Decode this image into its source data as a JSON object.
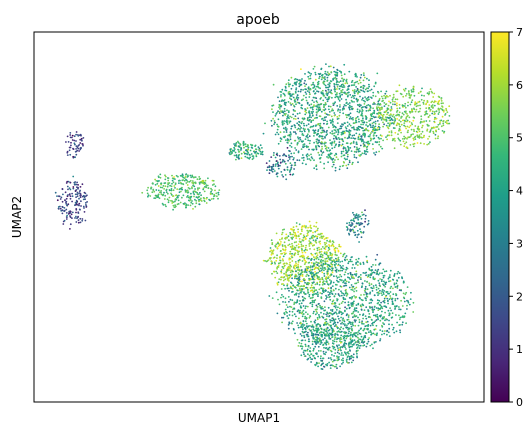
{
  "chart_data": {
    "type": "scatter",
    "title": "apoeb",
    "xlabel": "UMAP1",
    "ylabel": "UMAP2",
    "colorbar": {
      "min": 0,
      "max": 7,
      "ticks": [
        "0",
        "1",
        "2",
        "3",
        "4",
        "5",
        "6",
        "7"
      ],
      "colormap": "viridis",
      "stops": [
        "#440154",
        "#482878",
        "#3e4989",
        "#31688e",
        "#26828e",
        "#1f9e89",
        "#35b779",
        "#6ece58",
        "#b5de2b",
        "#fde725"
      ]
    },
    "xlim": [
      0,
      100
    ],
    "ylim": [
      0,
      100
    ],
    "x_ticks_shown": false,
    "y_ticks_shown": false,
    "grid": false,
    "clusters": [
      {
        "name": "upper-right",
        "cx": 66.0,
        "cy": 77.0,
        "rx": 13.0,
        "ry": 13.0,
        "value_mean": 4.2,
        "value_sd": 0.9,
        "n": 1400
      },
      {
        "name": "upper-right-lobe",
        "cx": 84.0,
        "cy": 77.0,
        "rx": 8.5,
        "ry": 8.0,
        "value_mean": 5.6,
        "value_sd": 0.6,
        "n": 450
      },
      {
        "name": "upper-left-patch",
        "cx": 55.0,
        "cy": 64.0,
        "rx": 3.5,
        "ry": 3.5,
        "value_mean": 2.6,
        "value_sd": 1.2,
        "n": 90
      },
      {
        "name": "lower-left-blob",
        "cx": 60.0,
        "cy": 39.0,
        "rx": 8.0,
        "ry": 9.0,
        "value_mean": 5.9,
        "value_sd": 0.7,
        "n": 650
      },
      {
        "name": "lower-main",
        "cx": 69.0,
        "cy": 27.0,
        "rx": 14.0,
        "ry": 12.5,
        "value_mean": 4.2,
        "value_sd": 0.8,
        "n": 1300
      },
      {
        "name": "lower-bottom",
        "cx": 66.0,
        "cy": 15.0,
        "rx": 7.0,
        "ry": 6.0,
        "value_mean": 4.0,
        "value_sd": 0.8,
        "n": 320
      },
      {
        "name": "middle-cluster",
        "cx": 33.0,
        "cy": 57.0,
        "rx": 8.0,
        "ry": 4.5,
        "value_mean": 5.0,
        "value_sd": 0.6,
        "n": 330
      },
      {
        "name": "middle-upper-strand",
        "cx": 47.0,
        "cy": 68.0,
        "rx": 4.0,
        "ry": 2.5,
        "value_mean": 4.3,
        "value_sd": 0.8,
        "n": 120
      },
      {
        "name": "left-strand",
        "cx": 8.5,
        "cy": 54.0,
        "rx": 3.5,
        "ry": 6.5,
        "value_mean": 1.5,
        "value_sd": 0.7,
        "n": 160
      },
      {
        "name": "left-top-strand",
        "cx": 9.0,
        "cy": 70.0,
        "rx": 2.0,
        "ry": 4.0,
        "value_mean": 1.4,
        "value_sd": 0.6,
        "n": 60
      },
      {
        "name": "bridge",
        "cx": 72.0,
        "cy": 48.0,
        "rx": 2.5,
        "ry": 4.0,
        "value_mean": 3.2,
        "value_sd": 1.0,
        "n": 80
      }
    ]
  }
}
